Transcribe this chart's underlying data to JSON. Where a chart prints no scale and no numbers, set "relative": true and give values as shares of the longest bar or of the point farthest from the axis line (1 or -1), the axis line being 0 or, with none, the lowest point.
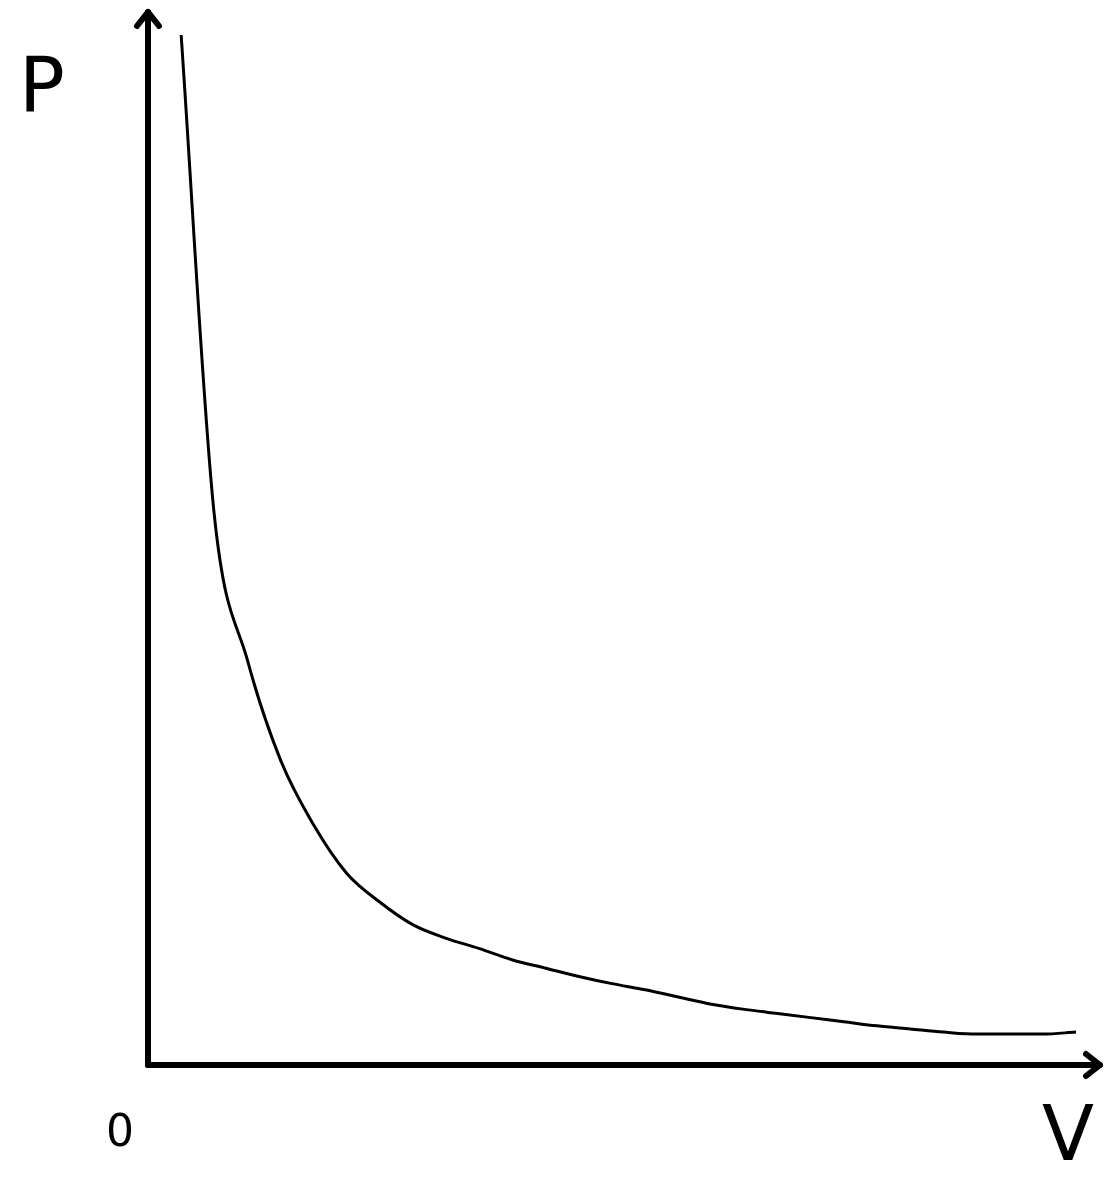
{
  "chart_data": {
    "type": "line",
    "relative": true,
    "xlabel": "V",
    "ylabel": "P",
    "annotations": [
      "0"
    ],
    "color": "#000000",
    "marker": "none",
    "categories": [
      null,
      null,
      null,
      null,
      null,
      null,
      null,
      null,
      null,
      null,
      null,
      null,
      null,
      null,
      null,
      null,
      null,
      null,
      null,
      null,
      null,
      null,
      null,
      null,
      null,
      null,
      null,
      null,
      null
    ],
    "values": [
      null,
      1,
      0.534,
      0.393,
      0.296,
      0.233,
      0.186,
      0.158,
      0.136,
      0.123,
      0.113,
      0.102,
      0.094,
      0.086,
      0.079,
      0.073,
      0.066,
      0.059,
      0.054,
      0.05,
      0.046,
      0.042,
      0.038,
      0.035,
      0.032,
      0.03,
      0.03,
      0.03,
      0.032
    ]
  }
}
